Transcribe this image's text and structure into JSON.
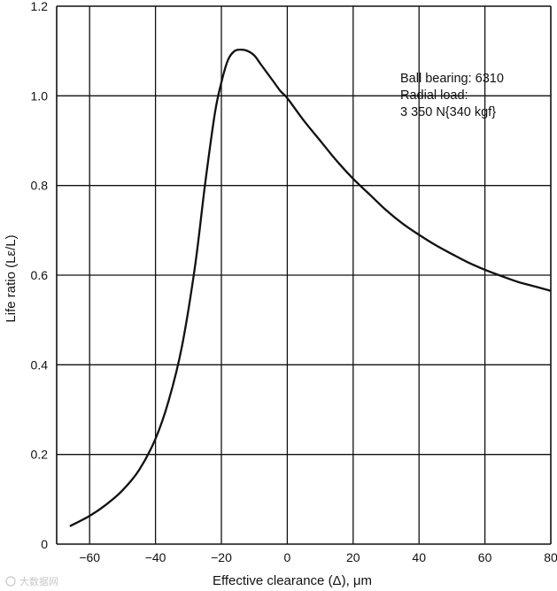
{
  "chart_data": {
    "type": "line",
    "title": "",
    "xlabel": "Effective clearance (Δ), μm",
    "ylabel": "Life ratio (Lε/L)",
    "xlim": [
      -70,
      80
    ],
    "ylim": [
      0,
      1.2
    ],
    "grid": true,
    "x_ticks": [
      -60,
      -40,
      -20,
      0,
      20,
      40,
      60,
      80
    ],
    "x_tick_labels": [
      "−60",
      "−40",
      "−20",
      "0",
      "20",
      "40",
      "60",
      "80"
    ],
    "y_ticks": [
      0,
      0.2,
      0.4,
      0.6,
      0.8,
      1.0,
      1.2
    ],
    "y_tick_labels": [
      "0",
      "0.2",
      "0.4",
      "0.6",
      "0.8",
      "1.0",
      "1.2"
    ],
    "series": [
      {
        "name": "Life ratio",
        "x": [
          -66,
          -60,
          -55,
          -50,
          -45,
          -40,
          -36,
          -32,
          -28,
          -25,
          -22,
          -20,
          -18,
          -16,
          -14,
          -12,
          -10,
          -8,
          -6,
          -4,
          -2,
          0,
          5,
          10,
          15,
          20,
          25,
          30,
          35,
          40,
          45,
          50,
          55,
          60,
          65,
          70,
          75,
          80
        ],
        "y": [
          0.04,
          0.063,
          0.088,
          0.12,
          0.165,
          0.235,
          0.32,
          0.44,
          0.62,
          0.8,
          0.96,
          1.03,
          1.08,
          1.1,
          1.103,
          1.1,
          1.09,
          1.07,
          1.05,
          1.03,
          1.01,
          0.995,
          0.945,
          0.9,
          0.855,
          0.815,
          0.78,
          0.745,
          0.715,
          0.69,
          0.667,
          0.647,
          0.628,
          0.612,
          0.598,
          0.585,
          0.575,
          0.565
        ]
      }
    ],
    "annotations": [
      "Ball bearing: 6310",
      "Radial load:",
      "3 350 N{340 kgf}"
    ]
  },
  "watermark": "大数据网"
}
